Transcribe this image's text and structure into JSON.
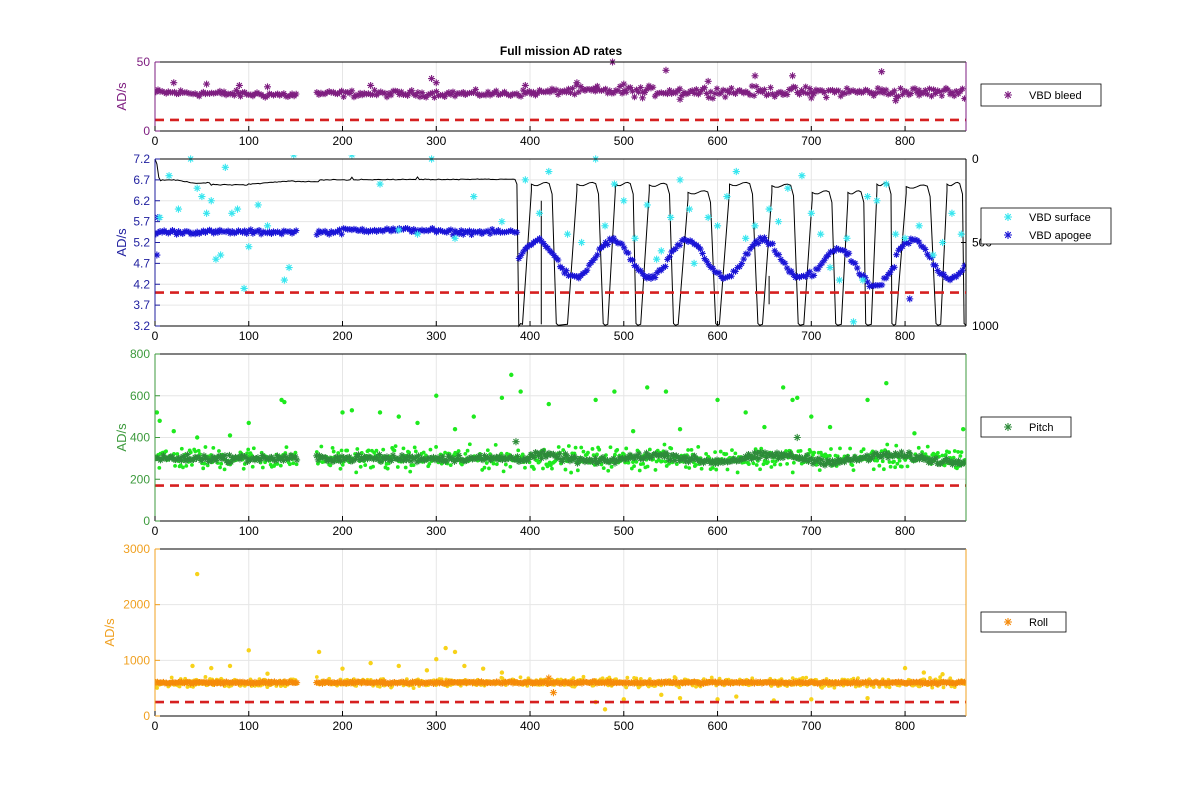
{
  "title": "Full mission AD rates",
  "colors": {
    "bleed": "#7e1e80",
    "surface": "#37e6ef",
    "apogee": "#1a14d6",
    "depth": "#000000",
    "pitch_dark": "#2e8b3a",
    "pitch_light": "#1eea1e",
    "pitch_axis": "#3c9a3c",
    "roll_dark": "#f58a0a",
    "roll_light": "#f7d21a",
    "roll_axis": "#f0a020",
    "vbd_axis": "#1f1f9f",
    "threshold": "#d62020",
    "grid": "#e6e6e6"
  },
  "chart_data": [
    {
      "type": "scatter",
      "name": "VBD bleed panel",
      "ylabel": "AD/s",
      "xlim": [
        0,
        865
      ],
      "ylim": [
        0,
        50
      ],
      "xticks": [
        0,
        100,
        200,
        300,
        400,
        500,
        600,
        700,
        800
      ],
      "yticks": [
        0,
        50
      ],
      "grid": true,
      "legend": "outside-right",
      "threshold": 8,
      "series": [
        {
          "name": "VBD bleed",
          "marker": "asterisk",
          "color": "#7e1e80",
          "gap": [
            152,
            172
          ],
          "segments": [
            [
              0,
              28
            ],
            [
              150,
              26
            ],
            [
              172,
              27
            ],
            [
              380,
              27
            ],
            [
              440,
              29
            ],
            [
              865,
              28
            ]
          ],
          "spread": 3.5,
          "outliers": [
            [
              20,
              35
            ],
            [
              55,
              34
            ],
            [
              90,
              33
            ],
            [
              120,
              32
            ],
            [
              230,
              33
            ],
            [
              295,
              38
            ],
            [
              300,
              35
            ],
            [
              395,
              33
            ],
            [
              450,
              35
            ],
            [
              470,
              31
            ],
            [
              488,
              50
            ],
            [
              500,
              34
            ],
            [
              520,
              24
            ],
            [
              545,
              44
            ],
            [
              560,
              23
            ],
            [
              590,
              36
            ],
            [
              640,
              40
            ],
            [
              680,
              40
            ],
            [
              700,
              24
            ],
            [
              775,
              43
            ],
            [
              790,
              22
            ],
            [
              815,
              26
            ]
          ]
        }
      ]
    },
    {
      "type": "scatter",
      "name": "VBD panel",
      "ylabel": "AD/s",
      "xlim": [
        0,
        865
      ],
      "ylim": [
        3.2,
        7.2
      ],
      "xticks": [
        0,
        100,
        200,
        300,
        400,
        500,
        600,
        700,
        800
      ],
      "yticks": [
        3.2,
        3.7,
        4.2,
        4.7,
        5.2,
        5.7,
        6.2,
        6.7,
        7.2
      ],
      "y2lim": [
        0,
        1000
      ],
      "y2ticks": [
        0,
        500,
        1000
      ],
      "y2_reversed": true,
      "grid": true,
      "legend": "outside-right",
      "threshold": 4.0,
      "series": [
        {
          "name": "VBD surface",
          "marker": "asterisk",
          "color": "#37e6ef",
          "points": [
            [
              5,
              5.8
            ],
            [
              15,
              6.8
            ],
            [
              25,
              6.0
            ],
            [
              38,
              7.2
            ],
            [
              45,
              6.5
            ],
            [
              50,
              6.3
            ],
            [
              55,
              5.9
            ],
            [
              60,
              6.2
            ],
            [
              65,
              4.8
            ],
            [
              70,
              4.9
            ],
            [
              75,
              7.0
            ],
            [
              82,
              5.9
            ],
            [
              88,
              6.0
            ],
            [
              95,
              4.1
            ],
            [
              100,
              5.1
            ],
            [
              110,
              6.1
            ],
            [
              120,
              5.6
            ],
            [
              138,
              4.3
            ],
            [
              143,
              4.6
            ],
            [
              148,
              7.3
            ],
            [
              210,
              7.3
            ],
            [
              240,
              6.6
            ],
            [
              260,
              5.5
            ],
            [
              280,
              5.4
            ],
            [
              295,
              7.2
            ],
            [
              320,
              5.3
            ],
            [
              340,
              6.3
            ],
            [
              370,
              5.7
            ],
            [
              395,
              6.7
            ],
            [
              410,
              5.9
            ],
            [
              420,
              6.9
            ],
            [
              440,
              5.4
            ],
            [
              455,
              5.2
            ],
            [
              470,
              7.2
            ],
            [
              480,
              5.6
            ],
            [
              490,
              6.6
            ],
            [
              500,
              6.2
            ],
            [
              512,
              5.3
            ],
            [
              525,
              6.1
            ],
            [
              535,
              4.8
            ],
            [
              540,
              5.0
            ],
            [
              550,
              5.8
            ],
            [
              560,
              6.7
            ],
            [
              570,
              6.0
            ],
            [
              575,
              4.7
            ],
            [
              590,
              5.8
            ],
            [
              600,
              5.6
            ],
            [
              610,
              6.3
            ],
            [
              620,
              6.9
            ],
            [
              630,
              5.3
            ],
            [
              640,
              5.6
            ],
            [
              655,
              6.0
            ],
            [
              665,
              5.7
            ],
            [
              675,
              6.5
            ],
            [
              690,
              6.8
            ],
            [
              700,
              5.9
            ],
            [
              710,
              5.4
            ],
            [
              720,
              4.6
            ],
            [
              730,
              4.3
            ],
            [
              738,
              5.3
            ],
            [
              745,
              3.3
            ],
            [
              755,
              4.3
            ],
            [
              760,
              6.3
            ],
            [
              770,
              6.2
            ],
            [
              780,
              6.6
            ],
            [
              790,
              5.4
            ],
            [
              800,
              5.3
            ],
            [
              815,
              5.6
            ],
            [
              830,
              4.9
            ],
            [
              840,
              5.2
            ],
            [
              850,
              5.9
            ],
            [
              860,
              5.4
            ]
          ]
        },
        {
          "name": "VBD apogee",
          "marker": "asterisk",
          "color": "#1a14d6",
          "gap": [
            152,
            172
          ],
          "outliers": [
            [
              2,
              4.9
            ],
            [
              3,
              5.8
            ],
            [
              805,
              3.85
            ]
          ]
        },
        {
          "name": "Depth",
          "marker": "none",
          "line": true,
          "color": "#000000",
          "axis": "right"
        }
      ]
    },
    {
      "type": "scatter",
      "name": "Pitch panel",
      "ylabel": "AD/s",
      "xlim": [
        0,
        865
      ],
      "ylim": [
        0,
        800
      ],
      "xticks": [
        0,
        100,
        200,
        300,
        400,
        500,
        600,
        700,
        800
      ],
      "yticks": [
        0,
        200,
        400,
        600,
        800
      ],
      "grid": true,
      "legend": "outside-right",
      "threshold": 170,
      "series": [
        {
          "name": "Pitch",
          "marker": "asterisk",
          "color": "#2e8b3a",
          "gap": [
            152,
            172
          ],
          "center": 300,
          "spread": 25,
          "outliers": [
            [
              385,
              380
            ],
            [
              685,
              400
            ]
          ]
        },
        {
          "name": "Pitch (raw)",
          "marker": "dot",
          "color": "#1eea1e",
          "gap": [
            152,
            172
          ],
          "center": 300,
          "spread": 80,
          "outliers": [
            [
              2,
              520
            ],
            [
              5,
              480
            ],
            [
              20,
              430
            ],
            [
              45,
              400
            ],
            [
              80,
              410
            ],
            [
              100,
              470
            ],
            [
              135,
              580
            ],
            [
              138,
              570
            ],
            [
              200,
              520
            ],
            [
              210,
              530
            ],
            [
              240,
              520
            ],
            [
              260,
              500
            ],
            [
              280,
              470
            ],
            [
              300,
              600
            ],
            [
              320,
              440
            ],
            [
              340,
              500
            ],
            [
              370,
              590
            ],
            [
              380,
              700
            ],
            [
              390,
              620
            ],
            [
              420,
              560
            ],
            [
              470,
              580
            ],
            [
              490,
              620
            ],
            [
              510,
              430
            ],
            [
              525,
              640
            ],
            [
              545,
              620
            ],
            [
              560,
              440
            ],
            [
              600,
              580
            ],
            [
              630,
              520
            ],
            [
              650,
              450
            ],
            [
              670,
              640
            ],
            [
              680,
              580
            ],
            [
              685,
              590
            ],
            [
              700,
              500
            ],
            [
              720,
              450
            ],
            [
              760,
              580
            ],
            [
              780,
              660
            ],
            [
              810,
              420
            ],
            [
              862,
              440
            ]
          ]
        }
      ]
    },
    {
      "type": "scatter",
      "name": "Roll panel",
      "ylabel": "AD/s",
      "xlim": [
        0,
        865
      ],
      "ylim": [
        0,
        3000
      ],
      "xticks": [
        0,
        100,
        200,
        300,
        400,
        500,
        600,
        700,
        800
      ],
      "yticks": [
        0,
        1000,
        2000,
        3000
      ],
      "grid": true,
      "legend": "outside-right",
      "threshold": 250,
      "series": [
        {
          "name": "Roll",
          "marker": "asterisk",
          "color": "#f58a0a",
          "gap": [
            152,
            172
          ],
          "center": 600,
          "spread": 30,
          "outliers": [
            [
              420,
              680
            ],
            [
              425,
              420
            ]
          ]
        },
        {
          "name": "Roll (raw)",
          "marker": "dot",
          "color": "#f7d21a",
          "gap": [
            152,
            172
          ],
          "center": 600,
          "spread": 120,
          "outliers": [
            [
              45,
              2550
            ],
            [
              40,
              900
            ],
            [
              60,
              860
            ],
            [
              80,
              900
            ],
            [
              100,
              1180
            ],
            [
              120,
              760
            ],
            [
              175,
              1150
            ],
            [
              200,
              850
            ],
            [
              230,
              950
            ],
            [
              260,
              900
            ],
            [
              290,
              820
            ],
            [
              300,
              1020
            ],
            [
              310,
              1220
            ],
            [
              320,
              1150
            ],
            [
              330,
              900
            ],
            [
              350,
              850
            ],
            [
              370,
              780
            ],
            [
              470,
              250
            ],
            [
              480,
              120
            ],
            [
              500,
              300
            ],
            [
              540,
              380
            ],
            [
              560,
              320
            ],
            [
              600,
              300
            ],
            [
              620,
              350
            ],
            [
              660,
              280
            ],
            [
              700,
              300
            ],
            [
              760,
              320
            ],
            [
              800,
              860
            ],
            [
              820,
              780
            ],
            [
              840,
              750
            ]
          ]
        }
      ]
    }
  ]
}
